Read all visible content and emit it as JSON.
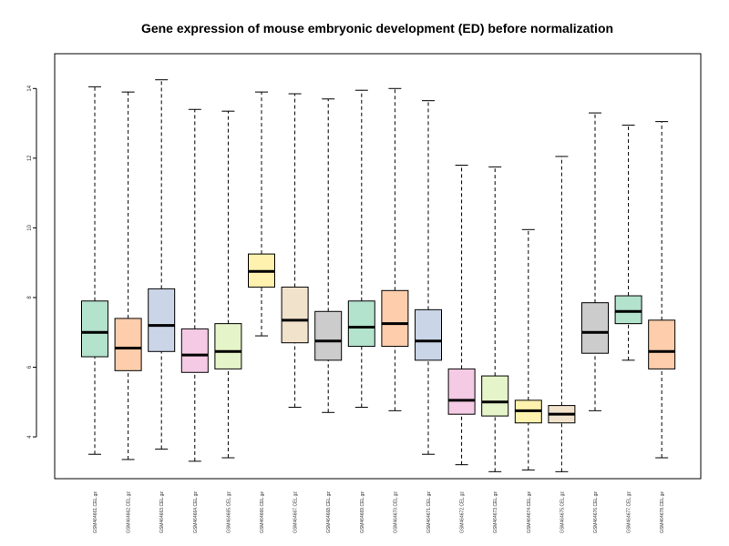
{
  "chart_data": {
    "type": "boxplot",
    "title": "Gene expression of mouse embryonic development (ED) before normalization",
    "xlabel": "",
    "ylabel": "",
    "ylim": [
      2.8,
      15.0
    ],
    "yticks": [
      4,
      6,
      8,
      10,
      12,
      14
    ],
    "grid": false,
    "legend": "none",
    "categories": [
      "GSM464661.CEL.gz",
      "GSM464662.CEL.gz",
      "GSM464663.CEL.gz",
      "GSM464664.CEL.gz",
      "GSM464665.CEL.gz",
      "GSM464666.CEL.gz",
      "GSM464667.CEL.gz",
      "GSM464668.CEL.gz",
      "GSM464669.CEL.gz",
      "GSM464670.CEL.gz",
      "GSM464671.CEL.gz",
      "GSM464672.CEL.gz",
      "GSM464673.CEL.gz",
      "GSM464674.CEL.gz",
      "GSM464675.CEL.gz",
      "GSM464676.CEL.gz",
      "GSM464677.CEL.gz",
      "GSM464678.CEL.gz"
    ],
    "boxes": [
      {
        "min": 3.5,
        "q1": 6.3,
        "median": 7.0,
        "q3": 7.9,
        "max": 14.05,
        "color": "#b3e2cd"
      },
      {
        "min": 3.35,
        "q1": 5.9,
        "median": 6.55,
        "q3": 7.4,
        "max": 13.9,
        "color": "#fdcdac"
      },
      {
        "min": 3.65,
        "q1": 6.45,
        "median": 7.2,
        "q3": 8.25,
        "max": 14.25,
        "color": "#cbd5e8"
      },
      {
        "min": 3.3,
        "q1": 5.85,
        "median": 6.35,
        "q3": 7.1,
        "max": 13.4,
        "color": "#f4cae4"
      },
      {
        "min": 3.4,
        "q1": 5.95,
        "median": 6.45,
        "q3": 7.25,
        "max": 13.35,
        "color": "#e6f5c9"
      },
      {
        "min": 6.9,
        "q1": 8.3,
        "median": 8.75,
        "q3": 9.25,
        "max": 13.9,
        "color": "#fff2ae"
      },
      {
        "min": 4.85,
        "q1": 6.7,
        "median": 7.35,
        "q3": 8.3,
        "max": 13.85,
        "color": "#f1e2cc"
      },
      {
        "min": 4.7,
        "q1": 6.2,
        "median": 6.75,
        "q3": 7.6,
        "max": 13.7,
        "color": "#cccccc"
      },
      {
        "min": 4.85,
        "q1": 6.6,
        "median": 7.15,
        "q3": 7.9,
        "max": 13.95,
        "color": "#b3e2cd"
      },
      {
        "min": 4.75,
        "q1": 6.6,
        "median": 7.25,
        "q3": 8.2,
        "max": 14.0,
        "color": "#fdcdac"
      },
      {
        "min": 3.5,
        "q1": 6.2,
        "median": 6.75,
        "q3": 7.65,
        "max": 13.65,
        "color": "#cbd5e8"
      },
      {
        "min": 3.2,
        "q1": 4.65,
        "median": 5.05,
        "q3": 5.95,
        "max": 11.8,
        "color": "#f4cae4"
      },
      {
        "min": 3.0,
        "q1": 4.6,
        "median": 5.0,
        "q3": 5.75,
        "max": 11.75,
        "color": "#e6f5c9"
      },
      {
        "min": 3.05,
        "q1": 4.4,
        "median": 4.75,
        "q3": 5.05,
        "max": 9.95,
        "color": "#fff2ae"
      },
      {
        "min": 3.0,
        "q1": 4.4,
        "median": 4.65,
        "q3": 4.9,
        "max": 12.05,
        "color": "#f1e2cc"
      },
      {
        "min": 4.75,
        "q1": 6.4,
        "median": 7.0,
        "q3": 7.85,
        "max": 13.3,
        "color": "#cccccc"
      },
      {
        "min": 6.2,
        "q1": 7.25,
        "median": 7.6,
        "q3": 8.05,
        "max": 12.95,
        "color": "#b3e2cd"
      },
      {
        "min": 3.4,
        "q1": 5.95,
        "median": 6.45,
        "q3": 7.35,
        "max": 13.05,
        "color": "#fdcdac"
      }
    ]
  }
}
